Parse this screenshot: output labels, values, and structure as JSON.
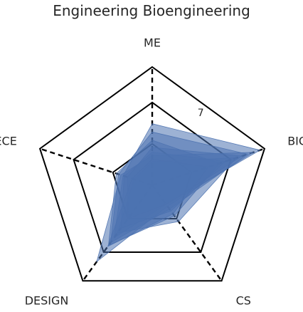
{
  "chart_data": {
    "type": "radar",
    "title": "Engineering Bioengineering",
    "axes": [
      "ME",
      "BIO",
      "CS",
      "DESIGN",
      "ECE"
    ],
    "rlim": [
      0,
      10
    ],
    "ring_levels": [
      3.5,
      7,
      10
    ],
    "tick_labels": [
      {
        "value": 7,
        "label": "7"
      }
    ],
    "grid": true,
    "fill_color": "#4c72b0",
    "fill_opacity": 0.55,
    "polygons": [
      [
        5.2,
        9.6,
        2.0,
        5.5,
        2.6
      ],
      [
        4.5,
        8.5,
        2.5,
        6.0,
        3.0
      ],
      [
        2.5,
        9.0,
        2.2,
        8.0,
        2.8
      ],
      [
        3.8,
        6.0,
        3.2,
        6.3,
        3.2
      ],
      [
        2.0,
        7.5,
        3.8,
        5.0,
        1.6
      ],
      [
        2.8,
        6.5,
        2.7,
        4.5,
        2.5
      ],
      [
        3.2,
        8.0,
        2.0,
        3.5,
        2.2
      ],
      [
        2.2,
        5.0,
        3.0,
        6.4,
        1.8
      ]
    ]
  }
}
